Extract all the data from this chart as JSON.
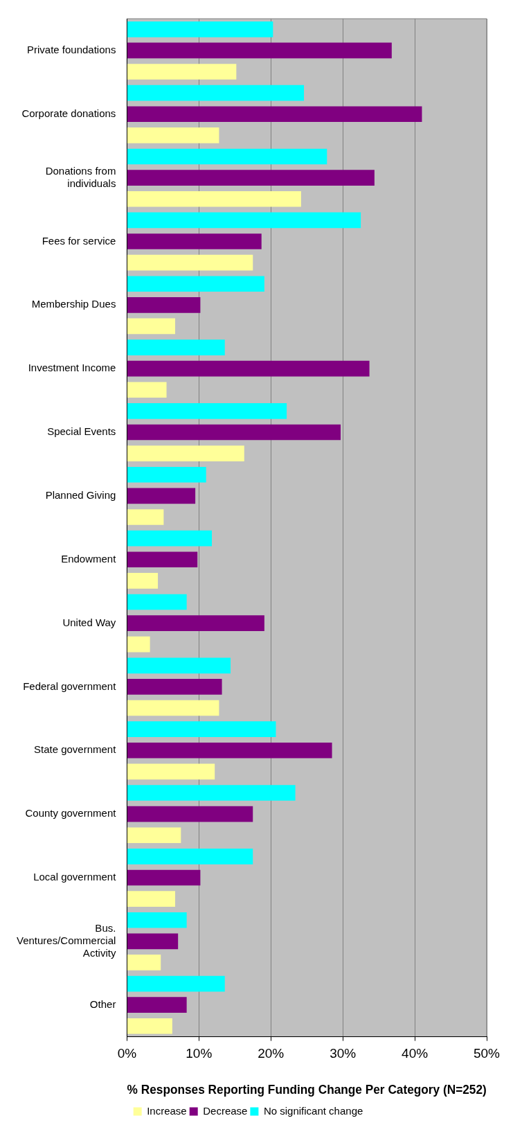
{
  "chart_data": {
    "type": "bar",
    "orientation": "horizontal",
    "xlabel": "% Responses Reporting Funding Change Per Category (N=252)",
    "categories": [
      "Private foundations",
      "Corporate donations",
      "Donations from individuals",
      "Fees for service",
      "Membership Dues",
      "Investment Income",
      "Special Events",
      "Planned Giving",
      "Endowment",
      "United Way",
      "Federal government",
      "State government",
      "County government",
      "Local government",
      "Bus. Ventures/Commercial Activity",
      "Other"
    ],
    "series": [
      {
        "name": "Increase",
        "color": "#ffff99",
        "values": [
          15.2,
          12.8,
          24.2,
          17.5,
          6.7,
          5.5,
          16.3,
          5.1,
          4.3,
          3.2,
          12.8,
          12.2,
          7.5,
          6.7,
          4.7,
          6.3
        ]
      },
      {
        "name": "Decrease",
        "color": "#800080",
        "values": [
          36.8,
          41.0,
          34.4,
          18.7,
          10.2,
          33.7,
          29.7,
          9.5,
          9.8,
          19.1,
          13.2,
          28.5,
          17.5,
          10.2,
          7.1,
          8.3
        ]
      },
      {
        "name": "No significant change",
        "color": "#00ffff",
        "values": [
          20.3,
          24.6,
          27.8,
          32.5,
          19.1,
          13.6,
          22.2,
          11.0,
          11.8,
          8.3,
          14.4,
          20.7,
          23.4,
          17.5,
          8.3,
          13.6
        ]
      }
    ],
    "xlim": [
      0,
      50
    ],
    "xticks": [
      {
        "value": 0,
        "label": "0%"
      },
      {
        "value": 10,
        "label": "10%"
      },
      {
        "value": 20,
        "label": "20%"
      },
      {
        "value": 30,
        "label": "30%"
      },
      {
        "value": 40,
        "label": "40%"
      },
      {
        "value": 50,
        "label": "50%"
      }
    ],
    "grid": "x",
    "legend": "bottom"
  }
}
